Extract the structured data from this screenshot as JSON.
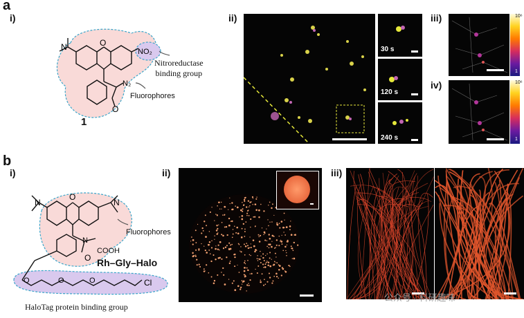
{
  "panel_a": {
    "letter": "a",
    "sub_i": "i)",
    "sub_ii": "ii)",
    "sub_iii": "iii)",
    "sub_iv": "iv)",
    "chem": {
      "compound_number": "1",
      "label_no2": "NO₂",
      "label_n2": "N₂",
      "binding_group": [
        "Nitroreductase",
        "binding group"
      ],
      "fluorophores": "Fluorophores"
    },
    "time_labels": [
      "30 s",
      "120 s",
      "240 s"
    ],
    "colorbar_max": "10⁶",
    "colorbar_min": "1"
  },
  "panel_b": {
    "letter": "b",
    "sub_i": "i)",
    "sub_ii": "ii)",
    "sub_iii": "iii)",
    "chem": {
      "fluorophores": "Fluorophores",
      "cooh": "COOH",
      "name": "Rh–Gly–Halo",
      "cl": "Cl",
      "binding_group": "HaloTag  protein binding group"
    },
    "watermark": "公众号 · 科研趣味"
  },
  "colors": {
    "pink_region": "#f9dad8",
    "purple_region": "#d9c9ee",
    "dash_blue": "#3aa5c9",
    "dash_yellow": "#e6e83a"
  }
}
